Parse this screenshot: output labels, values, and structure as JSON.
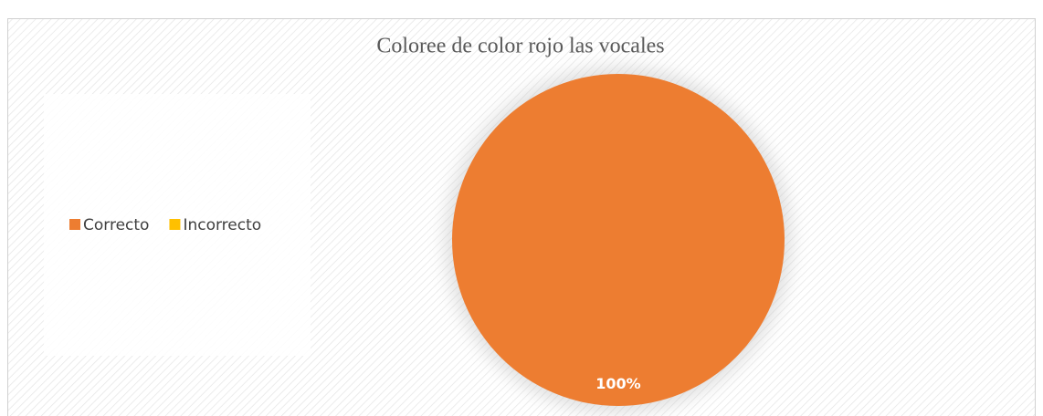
{
  "chart_data": {
    "type": "pie",
    "title": "Coloree de color rojo las vocales",
    "categories": [
      "Correcto",
      "Incorrecto"
    ],
    "values": [
      100,
      0
    ],
    "value_labels": [
      "100%",
      null
    ],
    "colors": [
      "#ed7d31",
      "#ffc000"
    ],
    "legend": "left"
  }
}
